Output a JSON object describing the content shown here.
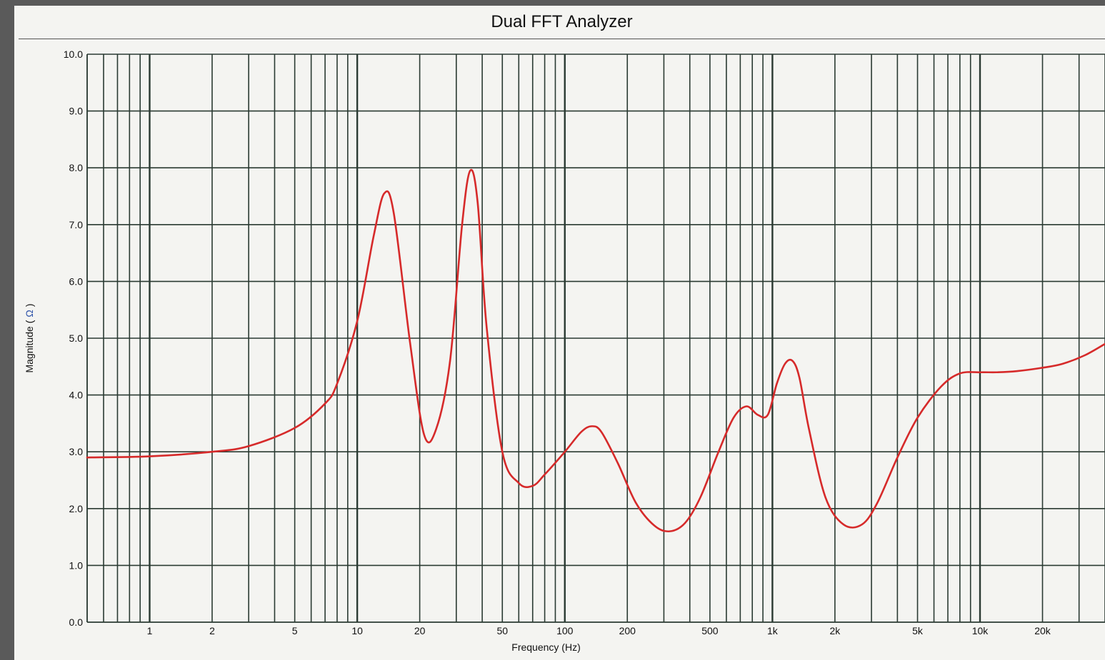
{
  "window": {
    "title": "Dual FFT Analyzer"
  },
  "chart_data": {
    "type": "line",
    "title": "Dual FFT Analyzer",
    "xlabel": "Frequency (Hz)",
    "ylabel": "Magnitude (Ω )",
    "ylabel_text": "Magnitude (",
    "ylabel_unit": "Ω",
    "ylabel_close": ")",
    "xscale": "log",
    "xlim": [
      0.5,
      40000
    ],
    "ylim": [
      0,
      10
    ],
    "grid": true,
    "line_color": "#d62a2a",
    "grid_color": "#2a3a32",
    "x_ticks": [
      {
        "value": 1,
        "label": "1"
      },
      {
        "value": 2,
        "label": "2"
      },
      {
        "value": 5,
        "label": "5"
      },
      {
        "value": 10,
        "label": "10"
      },
      {
        "value": 20,
        "label": "20"
      },
      {
        "value": 50,
        "label": "50"
      },
      {
        "value": 100,
        "label": "100"
      },
      {
        "value": 200,
        "label": "200"
      },
      {
        "value": 500,
        "label": "500"
      },
      {
        "value": 1000,
        "label": "1k"
      },
      {
        "value": 2000,
        "label": "2k"
      },
      {
        "value": 5000,
        "label": "5k"
      },
      {
        "value": 10000,
        "label": "10k"
      },
      {
        "value": 20000,
        "label": "20k"
      }
    ],
    "y_ticks": [
      {
        "value": 0,
        "label": "0.0"
      },
      {
        "value": 1,
        "label": "1.0"
      },
      {
        "value": 2,
        "label": "2.0"
      },
      {
        "value": 3,
        "label": "3.0"
      },
      {
        "value": 4,
        "label": "4.0"
      },
      {
        "value": 5,
        "label": "5.0"
      },
      {
        "value": 6,
        "label": "6.0"
      },
      {
        "value": 7,
        "label": "7.0"
      },
      {
        "value": 8,
        "label": "8.0"
      },
      {
        "value": 9,
        "label": "9.0"
      },
      {
        "value": 10,
        "label": "10.0"
      }
    ],
    "series": [
      {
        "x": [
          0.5,
          1,
          2,
          3,
          5,
          7,
          8,
          10,
          12,
          13.5,
          15,
          18,
          21,
          24,
          28,
          32,
          35,
          38,
          42,
          50,
          60,
          70,
          80,
          100,
          120,
          135,
          150,
          180,
          220,
          270,
          320,
          380,
          450,
          550,
          650,
          750,
          850,
          950,
          1050,
          1150,
          1250,
          1350,
          1500,
          1800,
          2200,
          2700,
          3200,
          4000,
          5000,
          6500,
          8000,
          10000,
          12000,
          15000,
          20000,
          25000,
          32000,
          40000
        ],
        "y": [
          2.9,
          2.92,
          3.0,
          3.1,
          3.42,
          3.85,
          4.2,
          5.3,
          6.8,
          7.55,
          7.2,
          4.9,
          3.3,
          3.4,
          4.6,
          7.0,
          7.95,
          7.4,
          5.2,
          3.0,
          2.45,
          2.4,
          2.6,
          3.0,
          3.35,
          3.45,
          3.35,
          2.8,
          2.1,
          1.7,
          1.6,
          1.75,
          2.2,
          3.0,
          3.6,
          3.8,
          3.65,
          3.65,
          4.2,
          4.55,
          4.6,
          4.3,
          3.4,
          2.2,
          1.72,
          1.72,
          2.1,
          2.9,
          3.6,
          4.15,
          4.38,
          4.4,
          4.4,
          4.42,
          4.48,
          4.55,
          4.7,
          4.9
        ]
      }
    ]
  }
}
